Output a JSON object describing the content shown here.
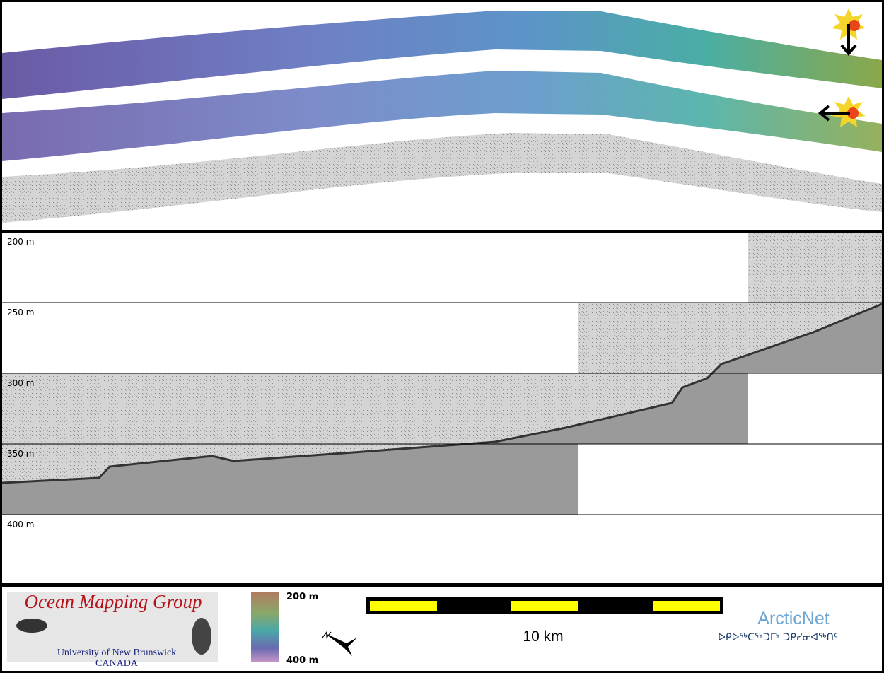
{
  "profile": {
    "depth_labels": [
      "200 m",
      "250 m",
      "300 m",
      "350 m",
      "400 m"
    ]
  },
  "logo": {
    "title": "Ocean Mapping Group",
    "university": "University of New Brunswick",
    "country": "CANADA"
  },
  "colorbar": {
    "top_label": "200 m",
    "bottom_label": "400 m"
  },
  "scale_bar": {
    "label": "10 km"
  },
  "partner": {
    "name": "ArcticNet",
    "name_inuktitut": "ᐅᑭᐅᖅᑕᖅᑐᒥᒃ ᑐᑭᓯᓂᐊᖅᑎᑦ"
  }
}
